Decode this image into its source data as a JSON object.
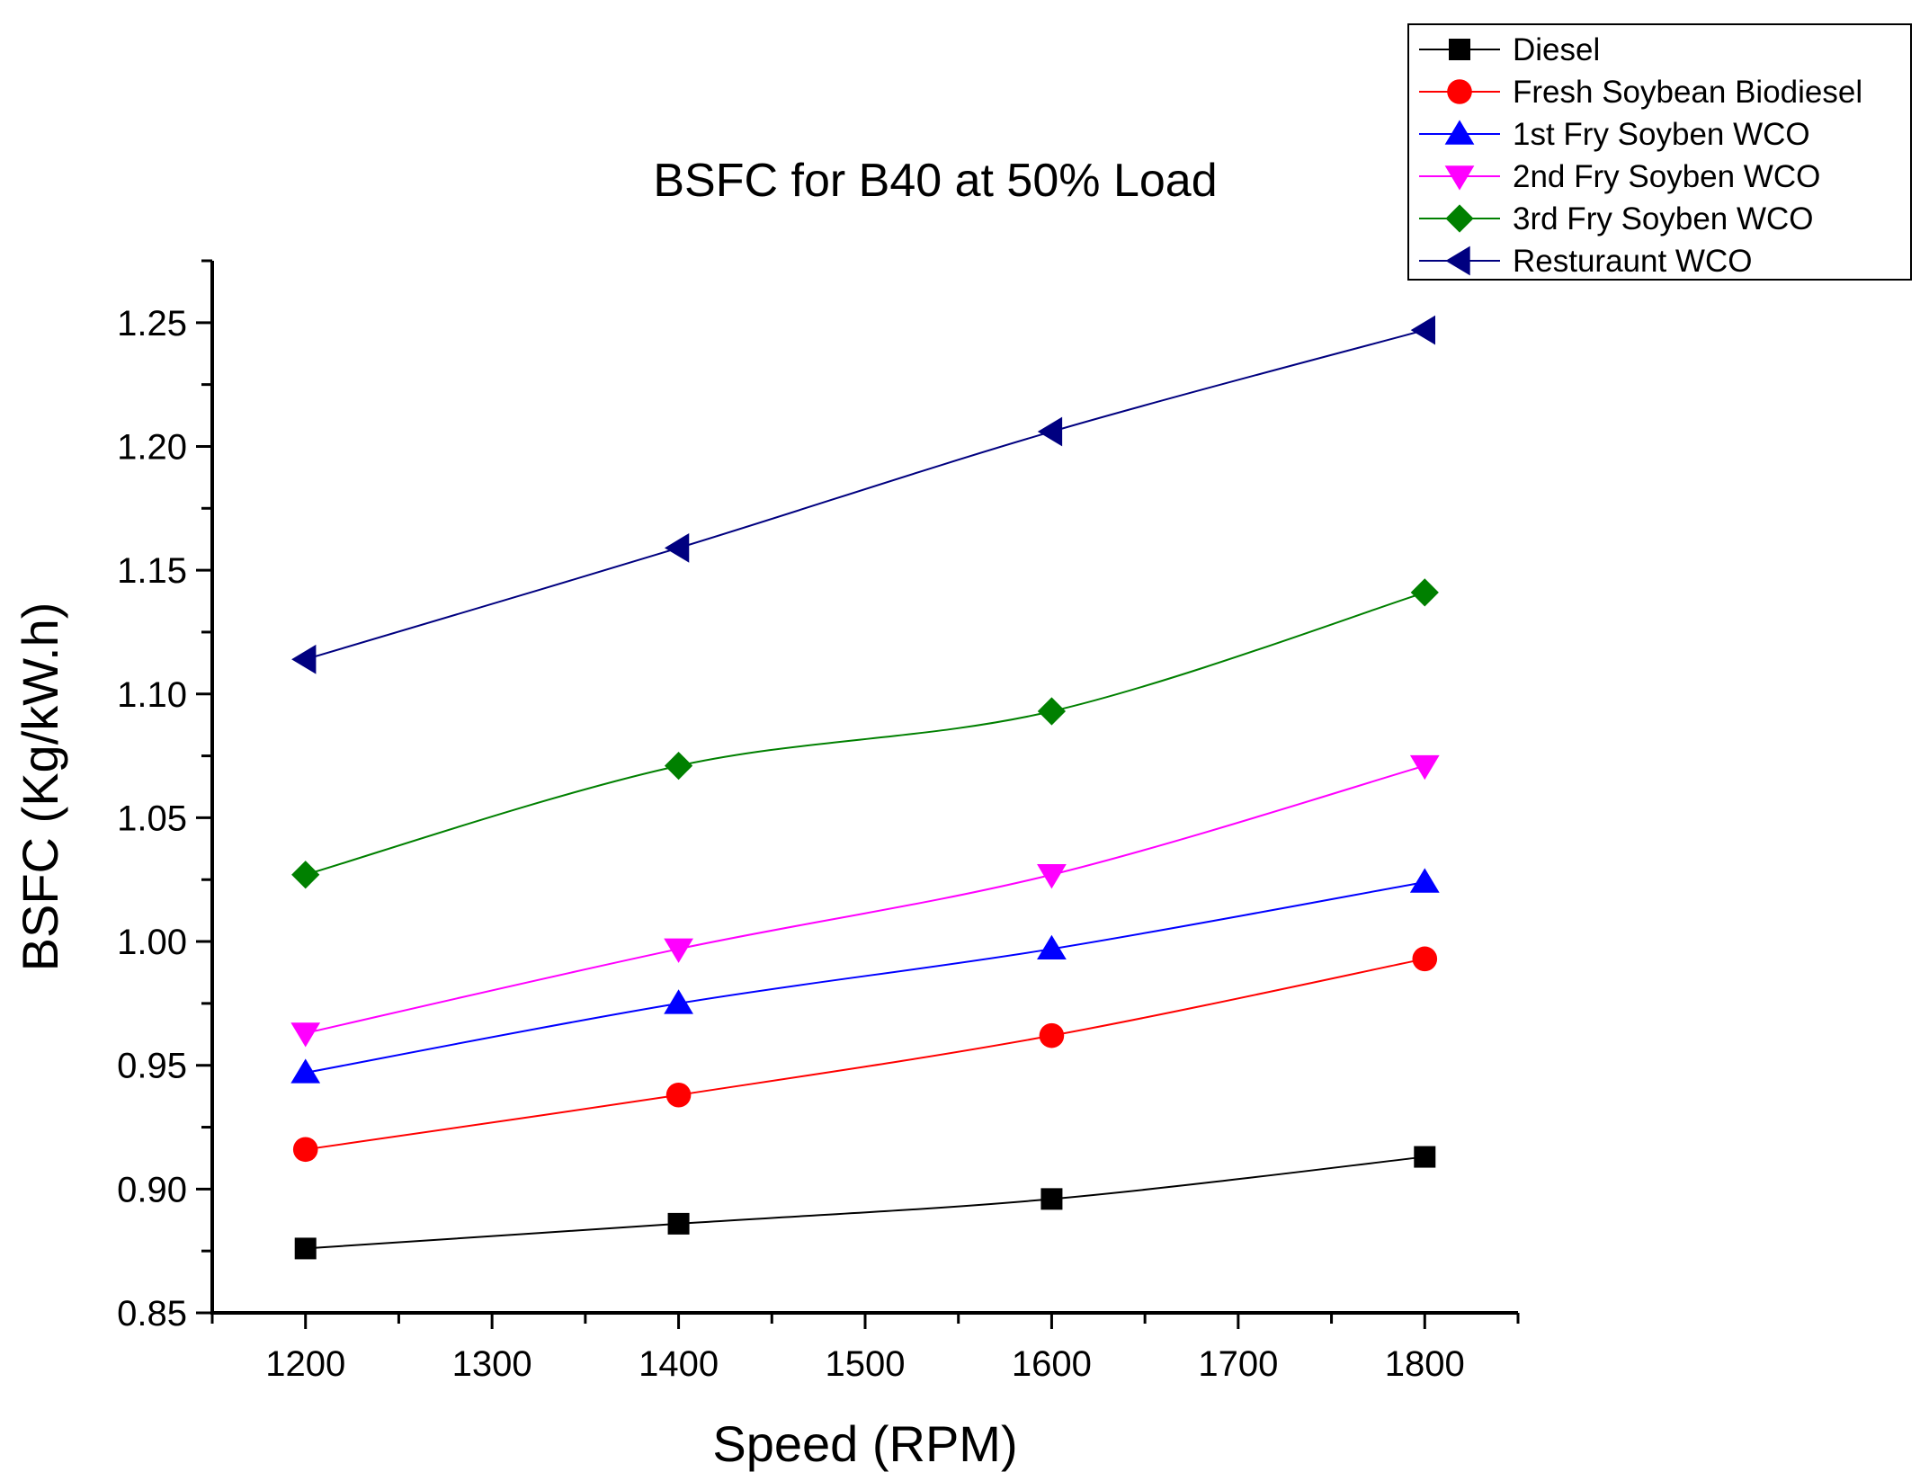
{
  "chart_data": {
    "type": "line",
    "title": "BSFC for B40 at 50% Load",
    "xlabel": "Speed (RPM)",
    "ylabel": "BSFC (Kg/kW.h)",
    "xlim": [
      1150,
      1850
    ],
    "ylim": [
      0.85,
      1.275
    ],
    "x_ticks": [
      1200,
      1300,
      1400,
      1500,
      1600,
      1700,
      1800
    ],
    "x_tick_labels": [
      "1200",
      "1300",
      "1400",
      "1500",
      "1600",
      "1700",
      "1800"
    ],
    "y_ticks": [
      0.85,
      0.9,
      0.95,
      1.0,
      1.05,
      1.1,
      1.15,
      1.2,
      1.25
    ],
    "y_tick_labels": [
      "0.85",
      "0.90",
      "0.95",
      "1.00",
      "1.05",
      "1.10",
      "1.15",
      "1.20",
      "1.25"
    ],
    "grid": false,
    "legend_position": "top-right",
    "x": [
      1200,
      1400,
      1600,
      1800
    ],
    "series": [
      {
        "name": "Diesel",
        "values": [
          0.876,
          0.886,
          0.896,
          0.913
        ],
        "color": "#000000",
        "marker": "square"
      },
      {
        "name": "Fresh Soybean Biodiesel",
        "values": [
          0.916,
          0.938,
          0.962,
          0.993
        ],
        "color": "#ff0000",
        "marker": "circle"
      },
      {
        "name": "1st Fry Soyben WCO",
        "values": [
          0.947,
          0.975,
          0.997,
          1.024
        ],
        "color": "#0000ff",
        "marker": "triangle-up"
      },
      {
        "name": "2nd Fry Soyben WCO",
        "values": [
          0.963,
          0.997,
          1.027,
          1.071
        ],
        "color": "#ff00ff",
        "marker": "triangle-down"
      },
      {
        "name": "3rd Fry Soyben WCO",
        "values": [
          1.027,
          1.071,
          1.093,
          1.141
        ],
        "color": "#008000",
        "marker": "diamond"
      },
      {
        "name": "Resturaunt WCO",
        "values": [
          1.114,
          1.159,
          1.206,
          1.247
        ],
        "color": "#000080",
        "marker": "triangle-left"
      }
    ]
  }
}
